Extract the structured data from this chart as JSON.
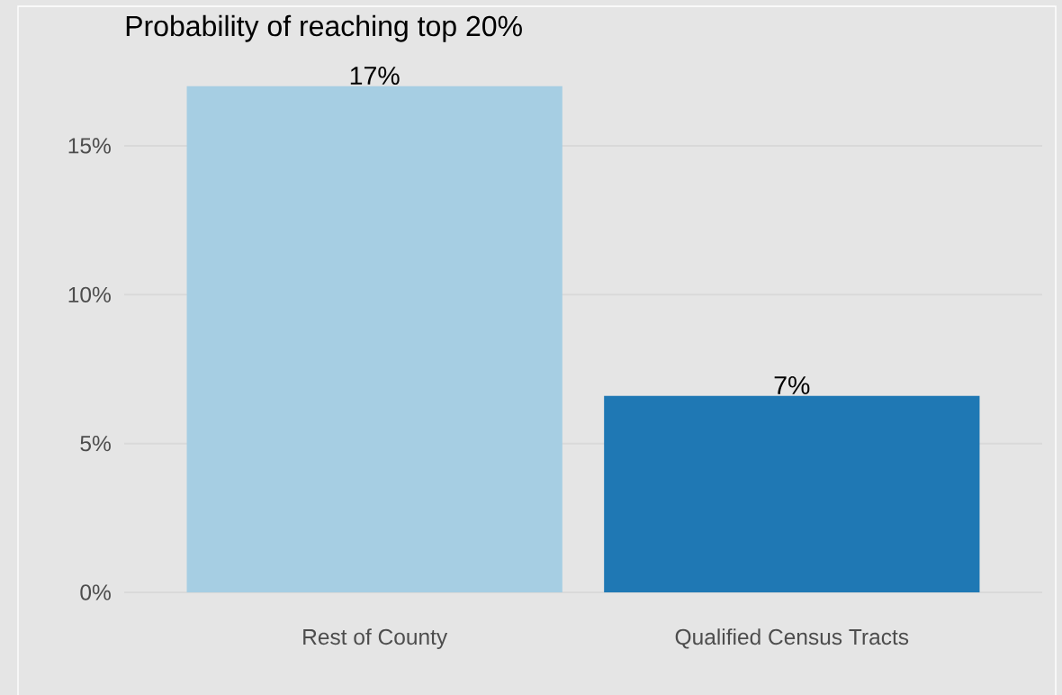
{
  "chart_data": {
    "type": "bar",
    "title": "Probability of reaching top 20%",
    "categories": [
      "Rest of County",
      "Qualified Census Tracts"
    ],
    "values": [
      17.0,
      6.6
    ],
    "colors": [
      "#a6cee3",
      "#1f78b4"
    ],
    "value_labels": [
      "17%",
      "7%"
    ],
    "ylim": [
      0,
      17.0
    ],
    "yticks": [
      {
        "value": 0,
        "label": "0%"
      },
      {
        "value": 5,
        "label": "5%"
      },
      {
        "value": 10,
        "label": "10%"
      },
      {
        "value": 15,
        "label": "15%"
      }
    ],
    "grid": "y"
  }
}
